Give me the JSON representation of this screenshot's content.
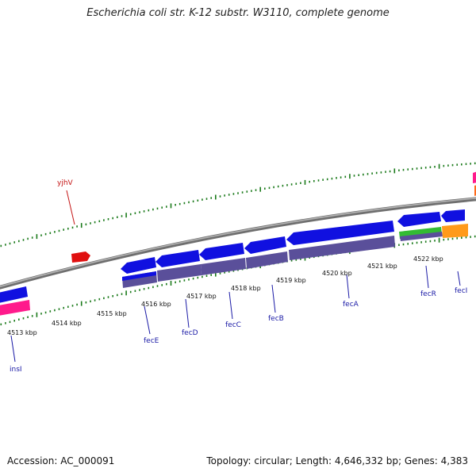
{
  "title": "Escherichia coli str. K-12 substr. W3110, complete genome",
  "footer": {
    "accession": "Accession: AC_000091",
    "stats": "Topology: circular; Length: 4,646,332 bp; Genes: 4,383"
  },
  "colors": {
    "backbone": "#8c8c8c",
    "cds_forward": "#1010e0",
    "cds_reverse": "#1010e0",
    "gene_track": "#5a4f9a",
    "pseudo": "#ff1a8c",
    "rna_green": "#33bb33",
    "orange": "#ff9a1a",
    "red_feature": "#e01010",
    "tick": "#1a7a1a",
    "label_blue": "#1a1aa6",
    "label_red": "#c41414"
  },
  "ticks_lower": [
    "4513 kbp",
    "4514 kbp",
    "4515 kbp",
    "4516 kbp",
    "4517 kbp",
    "4518 kbp",
    "4519 kbp",
    "4520 kbp",
    "4521 kbp",
    "4522 kbp"
  ],
  "genes": [
    {
      "name": "insI",
      "color": "blue"
    },
    {
      "name": "fecE",
      "color": "blue"
    },
    {
      "name": "fecD",
      "color": "blue"
    },
    {
      "name": "fecC",
      "color": "blue"
    },
    {
      "name": "fecB",
      "color": "blue"
    },
    {
      "name": "fecA",
      "color": "blue"
    },
    {
      "name": "fecR",
      "color": "blue"
    },
    {
      "name": "fecI",
      "color": "blue"
    },
    {
      "name": "yjhV",
      "color": "red"
    }
  ]
}
